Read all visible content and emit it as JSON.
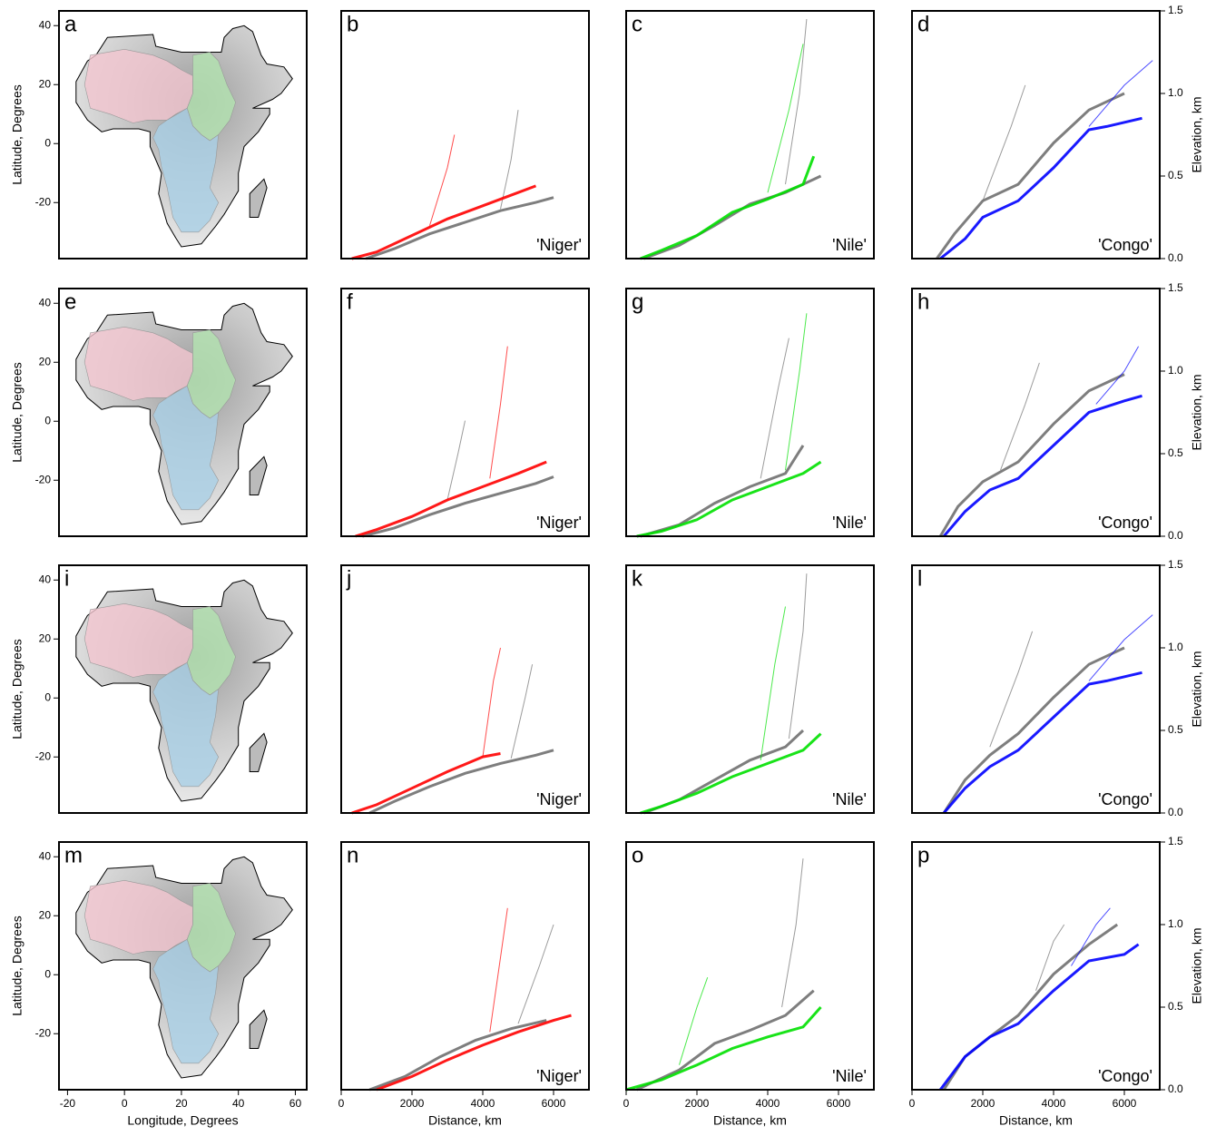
{
  "chart_data": [
    {
      "type": "map",
      "label": "a",
      "ylabel": "Latitude, Degrees",
      "xlim": [
        -23,
        64
      ],
      "ylim": [
        -39,
        45
      ],
      "yticks": [
        40,
        20,
        0,
        -20
      ],
      "basin_colors": [
        "#f2c6cf",
        "#b3e3b0",
        "#a9cfe6"
      ]
    },
    {
      "type": "profile",
      "label": "b",
      "river": "'Niger'",
      "xlim": [
        0,
        7000
      ],
      "ylim": [
        0,
        1.5
      ],
      "series": [
        {
          "color": "#707070",
          "x": [
            700,
            1500,
            2500,
            3500,
            4500,
            5500,
            6000
          ],
          "values": [
            0,
            0.06,
            0.15,
            0.22,
            0.29,
            0.34,
            0.37
          ]
        },
        {
          "color": "#707070",
          "x": [
            4500,
            4800,
            5000
          ],
          "values": [
            0.3,
            0.6,
            0.9
          ]
        },
        {
          "color": "#ff0000",
          "x": [
            300,
            1000,
            2000,
            3000,
            4000,
            5000,
            5500
          ],
          "values": [
            0,
            0.04,
            0.14,
            0.24,
            0.32,
            0.4,
            0.44
          ]
        },
        {
          "color": "#ff0000",
          "x": [
            2500,
            3000,
            3200
          ],
          "values": [
            0.2,
            0.55,
            0.75
          ]
        }
      ]
    },
    {
      "type": "profile",
      "label": "c",
      "river": "'Nile'",
      "xlim": [
        0,
        7000
      ],
      "ylim": [
        0,
        1.5
      ],
      "series": [
        {
          "color": "#707070",
          "x": [
            500,
            1500,
            2500,
            3500,
            4500,
            5500
          ],
          "values": [
            0,
            0.08,
            0.2,
            0.33,
            0.4,
            0.5
          ]
        },
        {
          "color": "#707070",
          "x": [
            4500,
            4900,
            5100
          ],
          "values": [
            0.45,
            1.0,
            1.45
          ]
        },
        {
          "color": "#00e000",
          "x": [
            400,
            1000,
            2000,
            3000,
            4000,
            5000,
            5300
          ],
          "values": [
            0,
            0.05,
            0.14,
            0.28,
            0.36,
            0.45,
            0.62
          ]
        },
        {
          "color": "#00e000",
          "x": [
            4000,
            4600,
            5000
          ],
          "values": [
            0.4,
            0.9,
            1.3
          ]
        }
      ]
    },
    {
      "type": "profile",
      "label": "d",
      "river": "'Congo'",
      "ylabel": "Elevation, km",
      "xlim": [
        0,
        7000
      ],
      "ylim": [
        0,
        1.5
      ],
      "yticks": [
        {
          "value": 0,
          "label": "0.0"
        },
        0.5,
        {
          "value": 1,
          "label": "1.0"
        },
        1.5
      ],
      "series": [
        {
          "color": "#707070",
          "x": [
            700,
            1200,
            2000,
            3000,
            4000,
            5000,
            6000
          ],
          "values": [
            0,
            0.15,
            0.35,
            0.45,
            0.7,
            0.9,
            1.0
          ]
        },
        {
          "color": "#707070",
          "x": [
            2000,
            2800,
            3200
          ],
          "values": [
            0.35,
            0.8,
            1.05
          ]
        },
        {
          "color": "#0000ff",
          "x": [
            800,
            1500,
            2000,
            3000,
            4000,
            5000,
            5500,
            6500
          ],
          "values": [
            0,
            0.12,
            0.25,
            0.35,
            0.55,
            0.78,
            0.8,
            0.85
          ]
        },
        {
          "color": "#0000ff",
          "x": [
            5000,
            6000,
            6800
          ],
          "values": [
            0.8,
            1.05,
            1.2
          ]
        }
      ]
    },
    {
      "type": "map",
      "label": "e",
      "ylabel": "Latitude, Degrees",
      "xlim": [
        -23,
        64
      ],
      "ylim": [
        -39,
        45
      ],
      "yticks": [
        40,
        20,
        0,
        -20
      ],
      "basin_colors": [
        "#f2c6cf",
        "#b3e3b0",
        "#a9cfe6"
      ]
    },
    {
      "type": "profile",
      "label": "f",
      "river": "'Niger'",
      "xlim": [
        0,
        7000
      ],
      "ylim": [
        0,
        1.5
      ],
      "series": [
        {
          "color": "#707070",
          "x": [
            600,
            1500,
            2500,
            3500,
            4500,
            5500,
            6000
          ],
          "values": [
            0,
            0.05,
            0.13,
            0.2,
            0.26,
            0.32,
            0.36
          ]
        },
        {
          "color": "#707070",
          "x": [
            3000,
            3300,
            3500
          ],
          "values": [
            0.22,
            0.5,
            0.7
          ]
        },
        {
          "color": "#ff0000",
          "x": [
            400,
            1000,
            2000,
            3000,
            4000,
            5000,
            5800
          ],
          "values": [
            0,
            0.04,
            0.12,
            0.22,
            0.3,
            0.38,
            0.45
          ]
        },
        {
          "color": "#ff0000",
          "x": [
            4200,
            4500,
            4700
          ],
          "values": [
            0.35,
            0.8,
            1.15
          ]
        }
      ]
    },
    {
      "type": "profile",
      "label": "g",
      "river": "'Nile'",
      "xlim": [
        0,
        7000
      ],
      "ylim": [
        0,
        1.5
      ],
      "series": [
        {
          "color": "#707070",
          "x": [
            400,
            1500,
            2500,
            3500,
            4500,
            5000
          ],
          "values": [
            0,
            0.07,
            0.2,
            0.3,
            0.38,
            0.55
          ]
        },
        {
          "color": "#707070",
          "x": [
            3800,
            4300,
            4600
          ],
          "values": [
            0.35,
            0.9,
            1.2
          ]
        },
        {
          "color": "#00e000",
          "x": [
            300,
            1000,
            2000,
            3000,
            4000,
            5000,
            5500
          ],
          "values": [
            0,
            0.03,
            0.1,
            0.22,
            0.3,
            0.38,
            0.45
          ]
        },
        {
          "color": "#00e000",
          "x": [
            4500,
            4900,
            5100
          ],
          "values": [
            0.4,
            1.0,
            1.35
          ]
        }
      ]
    },
    {
      "type": "profile",
      "label": "h",
      "river": "'Congo'",
      "ylabel": "Elevation, km",
      "xlim": [
        0,
        7000
      ],
      "ylim": [
        0,
        1.5
      ],
      "yticks": [
        {
          "value": 0,
          "label": "0.0"
        },
        0.5,
        {
          "value": 1,
          "label": "1.0"
        },
        1.5
      ],
      "series": [
        {
          "color": "#707070",
          "x": [
            800,
            1300,
            2000,
            3000,
            4000,
            5000,
            6000
          ],
          "values": [
            0,
            0.18,
            0.33,
            0.45,
            0.68,
            0.88,
            0.98
          ]
        },
        {
          "color": "#707070",
          "x": [
            2500,
            3200,
            3600
          ],
          "values": [
            0.4,
            0.8,
            1.05
          ]
        },
        {
          "color": "#0000ff",
          "x": [
            900,
            1500,
            2200,
            3000,
            4000,
            5000,
            6000,
            6500
          ],
          "values": [
            0,
            0.15,
            0.28,
            0.35,
            0.55,
            0.75,
            0.82,
            0.85
          ]
        },
        {
          "color": "#0000ff",
          "x": [
            5200,
            6000,
            6400
          ],
          "values": [
            0.8,
            1.0,
            1.15
          ]
        }
      ]
    },
    {
      "type": "map",
      "label": "i",
      "ylabel": "Latitude, Degrees",
      "xlim": [
        -23,
        64
      ],
      "ylim": [
        -39,
        45
      ],
      "yticks": [
        40,
        20,
        0,
        -20
      ],
      "basin_colors": [
        "#f2c6cf",
        "#b3e3b0",
        "#a9cfe6"
      ]
    },
    {
      "type": "profile",
      "label": "j",
      "river": "'Niger'",
      "xlim": [
        0,
        7000
      ],
      "ylim": [
        0,
        1.5
      ],
      "series": [
        {
          "color": "#707070",
          "x": [
            800,
            1500,
            2500,
            3500,
            4500,
            5500,
            6000
          ],
          "values": [
            0,
            0.07,
            0.16,
            0.24,
            0.3,
            0.35,
            0.38
          ]
        },
        {
          "color": "#707070",
          "x": [
            4800,
            5200,
            5400
          ],
          "values": [
            0.33,
            0.7,
            0.9
          ]
        },
        {
          "color": "#ff0000",
          "x": [
            300,
            1000,
            2000,
            3000,
            4000,
            4500
          ],
          "values": [
            0,
            0.05,
            0.15,
            0.25,
            0.34,
            0.36
          ]
        },
        {
          "color": "#ff0000",
          "x": [
            4000,
            4300,
            4500
          ],
          "values": [
            0.34,
            0.8,
            1.0
          ]
        }
      ]
    },
    {
      "type": "profile",
      "label": "k",
      "river": "'Nile'",
      "xlim": [
        0,
        7000
      ],
      "ylim": [
        0,
        1.5
      ],
      "series": [
        {
          "color": "#707070",
          "x": [
            500,
            1500,
            2500,
            3500,
            4500,
            5000
          ],
          "values": [
            0,
            0.08,
            0.2,
            0.32,
            0.4,
            0.5
          ]
        },
        {
          "color": "#707070",
          "x": [
            4600,
            5000,
            5100
          ],
          "values": [
            0.45,
            1.1,
            1.45
          ]
        },
        {
          "color": "#00e000",
          "x": [
            400,
            1000,
            2000,
            3000,
            4000,
            5000,
            5500
          ],
          "values": [
            0,
            0.04,
            0.12,
            0.22,
            0.3,
            0.38,
            0.48
          ]
        },
        {
          "color": "#00e000",
          "x": [
            3800,
            4200,
            4500
          ],
          "values": [
            0.32,
            0.9,
            1.25
          ]
        }
      ]
    },
    {
      "type": "profile",
      "label": "l",
      "river": "'Congo'",
      "ylabel": "Elevation, km",
      "xlim": [
        0,
        7000
      ],
      "ylim": [
        0,
        1.5
      ],
      "yticks": [
        {
          "value": 0,
          "label": "0.0"
        },
        0.5,
        {
          "value": 1,
          "label": "1.0"
        },
        1.5
      ],
      "series": [
        {
          "color": "#707070",
          "x": [
            900,
            1500,
            2200,
            3000,
            4000,
            5000,
            6000
          ],
          "values": [
            0,
            0.2,
            0.35,
            0.48,
            0.7,
            0.9,
            1.0
          ]
        },
        {
          "color": "#707070",
          "x": [
            2200,
            3000,
            3400
          ],
          "values": [
            0.4,
            0.85,
            1.1
          ]
        },
        {
          "color": "#0000ff",
          "x": [
            900,
            1500,
            2200,
            3000,
            4000,
            5000,
            5500,
            6500
          ],
          "values": [
            0,
            0.15,
            0.28,
            0.38,
            0.58,
            0.78,
            0.8,
            0.85
          ]
        },
        {
          "color": "#0000ff",
          "x": [
            5000,
            6000,
            6800
          ],
          "values": [
            0.8,
            1.05,
            1.2
          ]
        }
      ]
    },
    {
      "type": "map",
      "label": "m",
      "ylabel": "Latitude, Degrees",
      "xlabel": "Longitude, Degrees",
      "xlim": [
        -23,
        64
      ],
      "ylim": [
        -39,
        45
      ],
      "yticks": [
        40,
        20,
        0,
        -20
      ],
      "xticks": [
        -20,
        0,
        20,
        40,
        60
      ],
      "basin_colors": [
        "#f2c6cf",
        "#b3e3b0",
        "#a9cfe6"
      ]
    },
    {
      "type": "profile",
      "label": "n",
      "river": "'Niger'",
      "xlabel": "Distance, km",
      "xlim": [
        0,
        7000
      ],
      "ylim": [
        0,
        1.5
      ],
      "xticks": [
        0,
        2000,
        4000,
        6000
      ],
      "series": [
        {
          "color": "#707070",
          "x": [
            800,
            1800,
            2800,
            3800,
            4800,
            5800
          ],
          "values": [
            0,
            0.08,
            0.2,
            0.3,
            0.37,
            0.42
          ]
        },
        {
          "color": "#707070",
          "x": [
            5000,
            5600,
            6000
          ],
          "values": [
            0.4,
            0.75,
            1.0
          ]
        },
        {
          "color": "#ff0000",
          "x": [
            1000,
            2000,
            3000,
            4000,
            5000,
            6000,
            6500
          ],
          "values": [
            0,
            0.08,
            0.18,
            0.27,
            0.35,
            0.42,
            0.45
          ]
        },
        {
          "color": "#ff0000",
          "x": [
            4200,
            4500,
            4700
          ],
          "values": [
            0.35,
            0.8,
            1.1
          ]
        }
      ]
    },
    {
      "type": "profile",
      "label": "o",
      "river": "'Nile'",
      "xlabel": "Distance, km",
      "xlim": [
        0,
        7000
      ],
      "ylim": [
        0,
        1.5
      ],
      "xticks": [
        0,
        2000,
        4000,
        6000
      ],
      "series": [
        {
          "color": "#707070",
          "x": [
            300,
            1500,
            2500,
            3500,
            4500,
            5300
          ],
          "values": [
            0,
            0.12,
            0.28,
            0.36,
            0.45,
            0.6
          ]
        },
        {
          "color": "#707070",
          "x": [
            4400,
            4800,
            5000
          ],
          "values": [
            0.5,
            1.0,
            1.4
          ]
        },
        {
          "color": "#00e000",
          "x": [
            0,
            1000,
            2000,
            3000,
            4000,
            5000,
            5500
          ],
          "values": [
            0,
            0.06,
            0.15,
            0.25,
            0.32,
            0.38,
            0.5
          ]
        },
        {
          "color": "#00e000",
          "x": [
            1500,
            2000,
            2300
          ],
          "values": [
            0.15,
            0.5,
            0.68
          ]
        }
      ]
    },
    {
      "type": "profile",
      "label": "p",
      "river": "'Congo'",
      "ylabel": "Elevation, km",
      "xlabel": "Distance, km",
      "xlim": [
        0,
        7000
      ],
      "ylim": [
        0,
        1.5
      ],
      "xticks": [
        0,
        2000,
        4000,
        6000
      ],
      "yticks": [
        {
          "value": 0,
          "label": "0.0"
        },
        0.5,
        {
          "value": 1,
          "label": "1.0"
        },
        1.5
      ],
      "series": [
        {
          "color": "#707070",
          "x": [
            900,
            1500,
            2200,
            3000,
            4000,
            5000,
            5800
          ],
          "values": [
            0,
            0.2,
            0.32,
            0.45,
            0.7,
            0.88,
            1.0
          ]
        },
        {
          "color": "#707070",
          "x": [
            3500,
            4000,
            4300
          ],
          "values": [
            0.6,
            0.9,
            1.0
          ]
        },
        {
          "color": "#0000ff",
          "x": [
            800,
            1500,
            2200,
            3000,
            4000,
            5000,
            6000,
            6400
          ],
          "values": [
            0,
            0.2,
            0.32,
            0.4,
            0.6,
            0.78,
            0.82,
            0.88
          ]
        },
        {
          "color": "#0000ff",
          "x": [
            4500,
            5200,
            5600
          ],
          "values": [
            0.75,
            1.0,
            1.1
          ]
        }
      ]
    }
  ]
}
